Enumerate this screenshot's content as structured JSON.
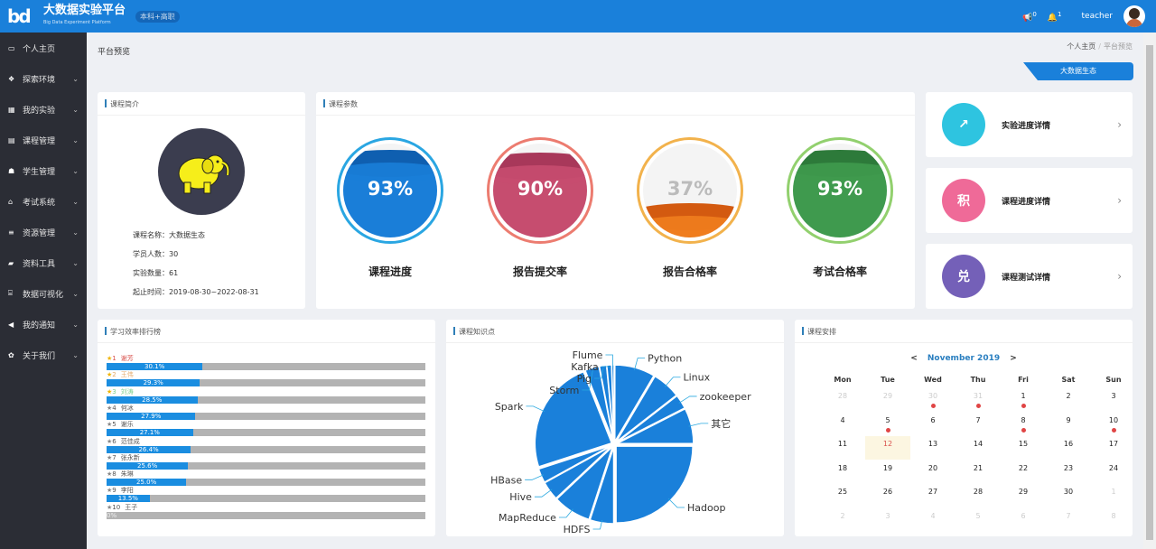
{
  "header": {
    "logo": "bd",
    "title": "大数据实验平台",
    "subtitle": "Big Data Experiment Platform",
    "tag": "本科+高职",
    "notice_count": "0",
    "bell_count": "1",
    "user": "teacher"
  },
  "sidebar": {
    "items": [
      {
        "label": "个人主页",
        "icon": "monitor-icon",
        "glyph": "▭",
        "chev": false
      },
      {
        "label": "探索环境",
        "icon": "cubes-icon",
        "glyph": "❖",
        "chev": true
      },
      {
        "label": "我的实验",
        "icon": "grid-icon",
        "glyph": "▦",
        "chev": true
      },
      {
        "label": "课程管理",
        "icon": "file-icon",
        "glyph": "▤",
        "chev": true
      },
      {
        "label": "学生管理",
        "icon": "users-icon",
        "glyph": "☗",
        "chev": true
      },
      {
        "label": "考试系统",
        "icon": "graduation-cap-icon",
        "glyph": "⌂",
        "chev": true
      },
      {
        "label": "资源管理",
        "icon": "database-icon",
        "glyph": "≡",
        "chev": true
      },
      {
        "label": "资料工具",
        "icon": "folder-icon",
        "glyph": "▰",
        "chev": true
      },
      {
        "label": "数据可视化",
        "icon": "bank-icon",
        "glyph": "⌸",
        "chev": true
      },
      {
        "label": "我的通知",
        "icon": "volume-icon",
        "glyph": "◀",
        "chev": true
      },
      {
        "label": "关于我们",
        "icon": "gear-icon",
        "glyph": "✿",
        "chev": true
      }
    ]
  },
  "page": {
    "title": "平台预览",
    "breadcrumb": [
      "个人主页",
      "平台预览"
    ],
    "eco_button": "大数据生态"
  },
  "intro": {
    "title": "课程简介",
    "rows": [
      "课程名称：大数据生态",
      "学员人数：30",
      "实验数量：61",
      "起止时间：2019-08-30~2022-08-31"
    ]
  },
  "params": {
    "title": "课程参数",
    "gauges": [
      {
        "label": "课程进度",
        "value": "93%",
        "level": 93,
        "fill": "#1a7ed8",
        "wave": "#0f5fb0",
        "ring": "#2aa6e2"
      },
      {
        "label": "报告提交率",
        "value": "90%",
        "level": 90,
        "fill": "#c64d6f",
        "wave": "#a8385a",
        "ring": "#ec7c70"
      },
      {
        "label": "报告合格率",
        "value": "37%",
        "level": 37,
        "fill": "#ef7d1e",
        "wave": "#d35a10",
        "ring": "#f2b24c"
      },
      {
        "label": "考试合格率",
        "value": "93%",
        "level": 93,
        "fill": "#3f9a4e",
        "wave": "#2d7a3a",
        "ring": "#92d06e"
      }
    ]
  },
  "links": [
    {
      "label": "实验进度详情",
      "icon": "chart-growth-icon",
      "glyph": "↗",
      "color": "#2ec4e0"
    },
    {
      "label": "课程进度详情",
      "icon": "points-icon",
      "glyph": "积",
      "color": "#ef6a98"
    },
    {
      "label": "课程测试详情",
      "icon": "exchange-icon",
      "glyph": "兑",
      "color": "#7460b8"
    }
  ],
  "ranking": {
    "title": "学习效率排行榜",
    "items": [
      {
        "rank": "1",
        "name": "谢芳",
        "value": 30.1,
        "label": "30.1%",
        "color": "#d9534f",
        "star": "#f0b400"
      },
      {
        "rank": "2",
        "name": "王伟",
        "value": 29.3,
        "label": "29.3%",
        "color": "#e3a868",
        "star": "#f0b400"
      },
      {
        "rank": "3",
        "name": "刘涛",
        "value": 28.5,
        "label": "28.5%",
        "color": "#7fd08e",
        "star": "#f0b400"
      },
      {
        "rank": "4",
        "name": "何冰",
        "value": 27.9,
        "label": "27.9%",
        "color": "#555",
        "star": "#888"
      },
      {
        "rank": "5",
        "name": "谢乐",
        "value": 27.1,
        "label": "27.1%",
        "color": "#555",
        "star": "#888"
      },
      {
        "rank": "6",
        "name": "范佳成",
        "value": 26.4,
        "label": "26.4%",
        "color": "#555",
        "star": "#888"
      },
      {
        "rank": "7",
        "name": "张永新",
        "value": 25.6,
        "label": "25.6%",
        "color": "#555",
        "star": "#888"
      },
      {
        "rank": "8",
        "name": "朱琳",
        "value": 25.0,
        "label": "25.0%",
        "color": "#555",
        "star": "#888"
      },
      {
        "rank": "9",
        "name": "李阳",
        "value": 13.5,
        "label": "13.5%",
        "color": "#555",
        "star": "#888"
      },
      {
        "rank": "10",
        "name": "王子",
        "value": 0,
        "label": "0%",
        "color": "#555",
        "star": "#888"
      }
    ]
  },
  "knowledge": {
    "title": "课程知识点"
  },
  "chart_data": {
    "type": "pie",
    "color": "#1a80da",
    "slices": [
      {
        "name": "Python",
        "value": 8.5
      },
      {
        "name": "Linux",
        "value": 6
      },
      {
        "name": "zookeeper",
        "value": 3
      },
      {
        "name": "其它",
        "value": 7.5
      },
      {
        "name": "Hadoop",
        "value": 25
      },
      {
        "name": "HDFS",
        "value": 5
      },
      {
        "name": "MapReduce",
        "value": 8
      },
      {
        "name": "Hive",
        "value": 4
      },
      {
        "name": "HBase",
        "value": 3
      },
      {
        "name": "Spark",
        "value": 24
      },
      {
        "name": "Storm",
        "value": 3
      },
      {
        "name": "Pig",
        "value": 1.5
      },
      {
        "name": "Kafka",
        "value": 1
      },
      {
        "name": "Flume",
        "value": 0.5
      }
    ]
  },
  "calendar": {
    "title": "课程安排",
    "month": "November 2019",
    "prev": "<",
    "next": ">",
    "weekdays": [
      "Mon",
      "Tue",
      "Wed",
      "Thu",
      "Fri",
      "Sat",
      "Sun"
    ],
    "days": [
      "28",
      "29",
      "30",
      "31",
      "1",
      "2",
      "3",
      "4",
      "5",
      "6",
      "7",
      "8",
      "9",
      "10",
      "11",
      "12",
      "13",
      "14",
      "15",
      "16",
      "17",
      "18",
      "19",
      "20",
      "21",
      "22",
      "23",
      "24",
      "25",
      "26",
      "27",
      "28",
      "29",
      "30",
      "1",
      "2",
      "3",
      "4",
      "5",
      "6",
      "7",
      "8"
    ],
    "muted": [
      0,
      1,
      2,
      3,
      34,
      35,
      36,
      37,
      38,
      39,
      40,
      41
    ],
    "events": [
      2,
      3,
      4,
      8,
      11,
      13
    ],
    "today": 15
  }
}
